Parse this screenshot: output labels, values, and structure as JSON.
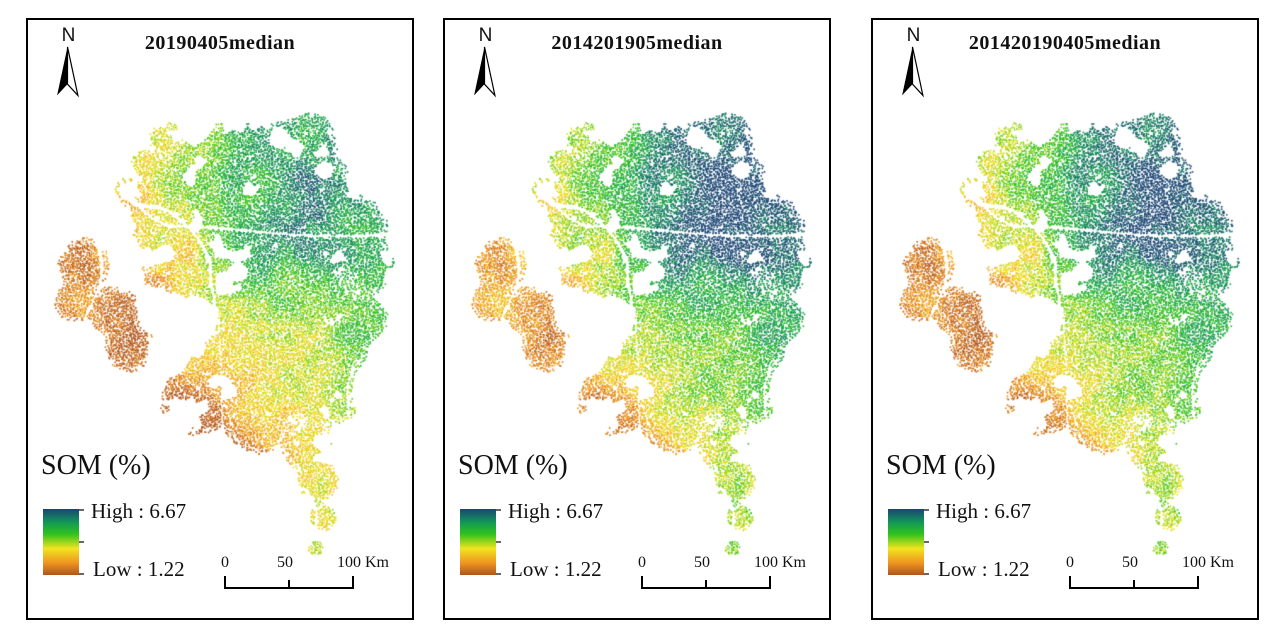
{
  "figure": {
    "background_color": "#ffffff",
    "border_color": "#000000",
    "north": {
      "label": "N"
    },
    "legend": {
      "title": "SOM (%)",
      "high_label": "High : 6.67",
      "low_label": "Low : 1.22"
    },
    "scalebar": {
      "labels": [
        "0",
        "50",
        "100 Km"
      ]
    },
    "ramp_stops": [
      {
        "t": 0.0,
        "c": "#b0541b"
      },
      {
        "t": 0.18,
        "c": "#ee9420"
      },
      {
        "t": 0.4,
        "c": "#f2e41f"
      },
      {
        "t": 0.62,
        "c": "#2fc31d"
      },
      {
        "t": 0.8,
        "c": "#129758"
      },
      {
        "t": 1.0,
        "c": "#1a4473"
      }
    ],
    "panels": [
      {
        "title": "20190405median",
        "field": {
          "ne": 0.16,
          "west": 0.22,
          "south": 0.2,
          "base": -0.05
        }
      },
      {
        "title": "2014201905median",
        "field": {
          "ne": 0.3,
          "west": 0.2,
          "south": 0.15,
          "base": 0.02
        }
      },
      {
        "title": "201420190405median",
        "field": {
          "ne": 0.28,
          "west": 0.26,
          "south": 0.13,
          "base": 0.0
        }
      }
    ]
  }
}
